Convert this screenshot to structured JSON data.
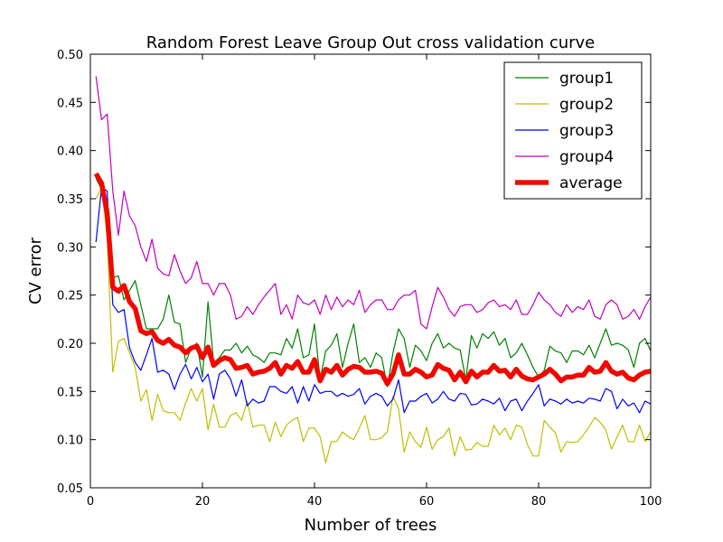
{
  "chart_data": {
    "type": "line",
    "title": "Random Forest Leave Group Out cross validation curve",
    "xlabel": "Number of trees",
    "ylabel": "CV error",
    "xlim": [
      0,
      100
    ],
    "ylim": [
      0.05,
      0.5
    ],
    "xticks": [
      "0",
      "20",
      "40",
      "60",
      "80",
      "100"
    ],
    "yticks": [
      "0.05",
      "0.10",
      "0.15",
      "0.20",
      "0.25",
      "0.30",
      "0.35",
      "0.40",
      "0.45",
      "0.50"
    ],
    "grid": false,
    "legend_position": "top-right",
    "x": [
      1,
      2,
      3,
      4,
      5,
      6,
      7,
      8,
      9,
      10,
      11,
      12,
      13,
      14,
      15,
      16,
      17,
      18,
      19,
      20,
      21,
      22,
      23,
      24,
      25,
      26,
      27,
      28,
      29,
      30,
      31,
      32,
      33,
      34,
      35,
      36,
      37,
      38,
      39,
      40,
      41,
      42,
      43,
      44,
      45,
      46,
      47,
      48,
      49,
      50,
      51,
      52,
      53,
      54,
      55,
      56,
      57,
      58,
      59,
      60,
      61,
      62,
      63,
      64,
      65,
      66,
      67,
      68,
      69,
      70,
      71,
      72,
      73,
      74,
      75,
      76,
      77,
      78,
      79,
      80,
      81,
      82,
      83,
      84,
      85,
      86,
      87,
      88,
      89,
      90,
      91,
      92,
      93,
      94,
      95,
      96,
      97,
      98,
      99,
      100
    ],
    "series": [
      {
        "name": "group1",
        "color": "#008000",
        "width": 1.2,
        "values": [
          0.371,
          0.36,
          0.33,
          0.268,
          0.27,
          0.245,
          0.255,
          0.265,
          0.24,
          0.215,
          0.215,
          0.215,
          0.225,
          0.25,
          0.222,
          0.22,
          0.18,
          0.195,
          0.2,
          0.165,
          0.243,
          0.18,
          0.185,
          0.193,
          0.193,
          0.2,
          0.19,
          0.197,
          0.188,
          0.185,
          0.18,
          0.19,
          0.19,
          0.188,
          0.205,
          0.195,
          0.215,
          0.185,
          0.188,
          0.22,
          0.162,
          0.192,
          0.198,
          0.21,
          0.175,
          0.2,
          0.22,
          0.18,
          0.185,
          0.175,
          0.19,
          0.185,
          0.155,
          0.19,
          0.215,
          0.205,
          0.175,
          0.198,
          0.192,
          0.182,
          0.2,
          0.21,
          0.195,
          0.2,
          0.195,
          0.193,
          0.162,
          0.208,
          0.195,
          0.21,
          0.205,
          0.212,
          0.198,
          0.205,
          0.185,
          0.19,
          0.2,
          0.188,
          0.175,
          0.165,
          0.172,
          0.197,
          0.192,
          0.19,
          0.18,
          0.192,
          0.192,
          0.188,
          0.198,
          0.185,
          0.2,
          0.215,
          0.198,
          0.2,
          0.198,
          0.193,
          0.175,
          0.2,
          0.205,
          0.192
        ]
      },
      {
        "name": "group2",
        "color": "#BFBF00",
        "width": 1.2,
        "values": [
          0.35,
          0.362,
          0.31,
          0.17,
          0.202,
          0.205,
          0.19,
          0.175,
          0.14,
          0.152,
          0.12,
          0.147,
          0.13,
          0.128,
          0.128,
          0.12,
          0.138,
          0.153,
          0.14,
          0.153,
          0.11,
          0.137,
          0.113,
          0.113,
          0.125,
          0.128,
          0.12,
          0.14,
          0.113,
          0.115,
          0.115,
          0.098,
          0.118,
          0.103,
          0.115,
          0.12,
          0.123,
          0.098,
          0.112,
          0.112,
          0.103,
          0.076,
          0.098,
          0.098,
          0.108,
          0.103,
          0.1,
          0.112,
          0.125,
          0.1,
          0.1,
          0.102,
          0.108,
          0.145,
          0.132,
          0.087,
          0.108,
          0.098,
          0.092,
          0.113,
          0.09,
          0.1,
          0.103,
          0.112,
          0.083,
          0.103,
          0.089,
          0.09,
          0.097,
          0.093,
          0.093,
          0.115,
          0.105,
          0.112,
          0.1,
          0.115,
          0.113,
          0.095,
          0.083,
          0.083,
          0.12,
          0.113,
          0.107,
          0.087,
          0.098,
          0.097,
          0.098,
          0.105,
          0.113,
          0.123,
          0.118,
          0.11,
          0.09,
          0.103,
          0.115,
          0.098,
          0.098,
          0.115,
          0.098,
          0.108
        ]
      },
      {
        "name": "group3",
        "color": "#0000FF",
        "width": 1.2,
        "values": [
          0.305,
          0.362,
          0.358,
          0.24,
          0.232,
          0.235,
          0.195,
          0.18,
          0.172,
          0.188,
          0.205,
          0.17,
          0.172,
          0.168,
          0.152,
          0.168,
          0.178,
          0.163,
          0.175,
          0.16,
          0.168,
          0.142,
          0.168,
          0.172,
          0.163,
          0.145,
          0.162,
          0.135,
          0.142,
          0.138,
          0.14,
          0.155,
          0.155,
          0.15,
          0.148,
          0.155,
          0.138,
          0.155,
          0.14,
          0.157,
          0.148,
          0.15,
          0.15,
          0.145,
          0.148,
          0.145,
          0.147,
          0.153,
          0.137,
          0.145,
          0.148,
          0.145,
          0.135,
          0.142,
          0.162,
          0.128,
          0.14,
          0.14,
          0.145,
          0.148,
          0.138,
          0.142,
          0.15,
          0.142,
          0.14,
          0.148,
          0.147,
          0.136,
          0.137,
          0.142,
          0.14,
          0.137,
          0.143,
          0.13,
          0.14,
          0.142,
          0.13,
          0.14,
          0.148,
          0.157,
          0.135,
          0.142,
          0.14,
          0.137,
          0.142,
          0.138,
          0.14,
          0.138,
          0.143,
          0.142,
          0.14,
          0.153,
          0.15,
          0.132,
          0.142,
          0.135,
          0.138,
          0.128,
          0.14,
          0.137
        ]
      },
      {
        "name": "group4",
        "color": "#BF00BF",
        "width": 1.2,
        "values": [
          0.477,
          0.432,
          0.438,
          0.358,
          0.312,
          0.358,
          0.332,
          0.322,
          0.3,
          0.285,
          0.308,
          0.278,
          0.272,
          0.27,
          0.292,
          0.275,
          0.262,
          0.268,
          0.285,
          0.262,
          0.262,
          0.25,
          0.262,
          0.262,
          0.25,
          0.225,
          0.228,
          0.238,
          0.23,
          0.24,
          0.248,
          0.255,
          0.262,
          0.23,
          0.24,
          0.225,
          0.25,
          0.242,
          0.24,
          0.245,
          0.23,
          0.25,
          0.235,
          0.248,
          0.238,
          0.245,
          0.24,
          0.255,
          0.232,
          0.24,
          0.245,
          0.245,
          0.235,
          0.235,
          0.245,
          0.25,
          0.25,
          0.255,
          0.22,
          0.215,
          0.238,
          0.258,
          0.248,
          0.235,
          0.228,
          0.238,
          0.24,
          0.24,
          0.232,
          0.235,
          0.242,
          0.245,
          0.238,
          0.24,
          0.235,
          0.245,
          0.23,
          0.23,
          0.24,
          0.253,
          0.245,
          0.24,
          0.232,
          0.228,
          0.24,
          0.232,
          0.238,
          0.235,
          0.245,
          0.228,
          0.225,
          0.24,
          0.245,
          0.24,
          0.225,
          0.228,
          0.235,
          0.225,
          0.238,
          0.248
        ]
      },
      {
        "name": "average",
        "color": "#FF0000",
        "outline": "#CC2200",
        "width": 4,
        "values": [
          0.376,
          0.366,
          0.335,
          0.258,
          0.254,
          0.26,
          0.243,
          0.236,
          0.213,
          0.21,
          0.212,
          0.203,
          0.2,
          0.204,
          0.198,
          0.196,
          0.19,
          0.195,
          0.197,
          0.185,
          0.196,
          0.177,
          0.182,
          0.185,
          0.183,
          0.174,
          0.175,
          0.177,
          0.168,
          0.17,
          0.171,
          0.174,
          0.18,
          0.168,
          0.177,
          0.174,
          0.181,
          0.17,
          0.17,
          0.183,
          0.161,
          0.173,
          0.17,
          0.177,
          0.167,
          0.173,
          0.176,
          0.175,
          0.17,
          0.17,
          0.171,
          0.169,
          0.158,
          0.168,
          0.188,
          0.168,
          0.168,
          0.173,
          0.17,
          0.165,
          0.167,
          0.178,
          0.174,
          0.172,
          0.162,
          0.17,
          0.16,
          0.171,
          0.165,
          0.17,
          0.17,
          0.177,
          0.171,
          0.172,
          0.165,
          0.173,
          0.166,
          0.163,
          0.162,
          0.165,
          0.168,
          0.173,
          0.168,
          0.161,
          0.165,
          0.165,
          0.167,
          0.167,
          0.175,
          0.17,
          0.171,
          0.18,
          0.171,
          0.168,
          0.17,
          0.164,
          0.162,
          0.167,
          0.17,
          0.171
        ]
      }
    ]
  }
}
